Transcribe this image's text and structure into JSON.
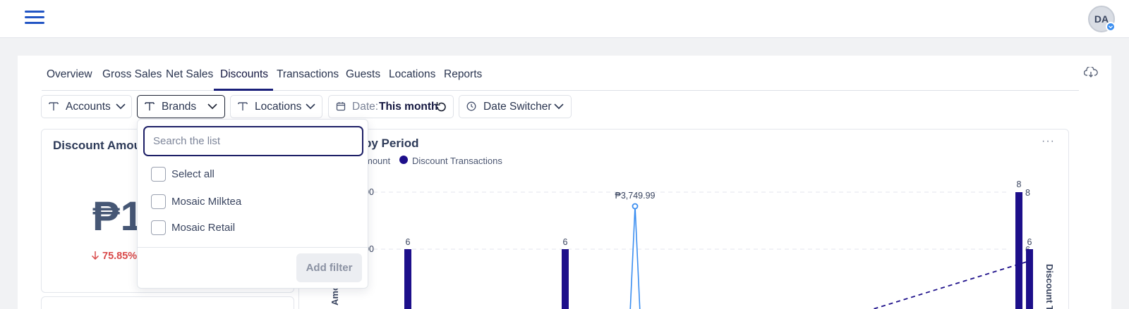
{
  "header": {
    "avatar_initials": "DA"
  },
  "tabs": [
    {
      "label": "Overview"
    },
    {
      "label": "Gross Sales"
    },
    {
      "label": "Net Sales"
    },
    {
      "label": "Discounts",
      "active": true
    },
    {
      "label": "Transactions"
    },
    {
      "label": "Guests"
    },
    {
      "label": "Locations"
    },
    {
      "label": "Reports"
    }
  ],
  "filters": {
    "accounts": "Accounts",
    "brands": "Brands",
    "locations": "Locations",
    "date_prefix": "Date:",
    "date_value": "This month",
    "date_switcher": "Date Switcher"
  },
  "amount_card": {
    "title": "Discount Amoun",
    "value": "₱1",
    "delta": "75.85%"
  },
  "chart_card": {
    "title": "by Period",
    "legend": [
      {
        "name": "mount",
        "color": "#3b8ef0"
      },
      {
        "name": "Discount Transactions",
        "color": "#1d0f8a"
      }
    ],
    "axis_right_title": "Discount T",
    "axis_left_title": "Amo"
  },
  "chart_data": {
    "type": "bar",
    "series": [
      {
        "name": "Discount Transactions",
        "type": "bar",
        "color": "#1d0f8a",
        "values": [
          6,
          6,
          8,
          6
        ],
        "labels": [
          "6",
          "6",
          "8",
          "6"
        ]
      },
      {
        "name": "mount",
        "type": "line",
        "color": "#3b8ef0",
        "peak_label": "₱3,749.99"
      }
    ],
    "y_right_ticks": [
      "8",
      "6"
    ],
    "y_left_ticks": [
      "00",
      "00"
    ],
    "grid": true
  },
  "brands_dropdown": {
    "search_placeholder": "Search the list",
    "select_all": "Select all",
    "options": [
      "Mosaic Milktea",
      "Mosaic Retail"
    ],
    "add_filter": "Add filter"
  },
  "colors": {
    "accent": "#1d1f66",
    "bar": "#1d0f8a",
    "line": "#3b8ef0",
    "negative": "#d94a4a"
  }
}
